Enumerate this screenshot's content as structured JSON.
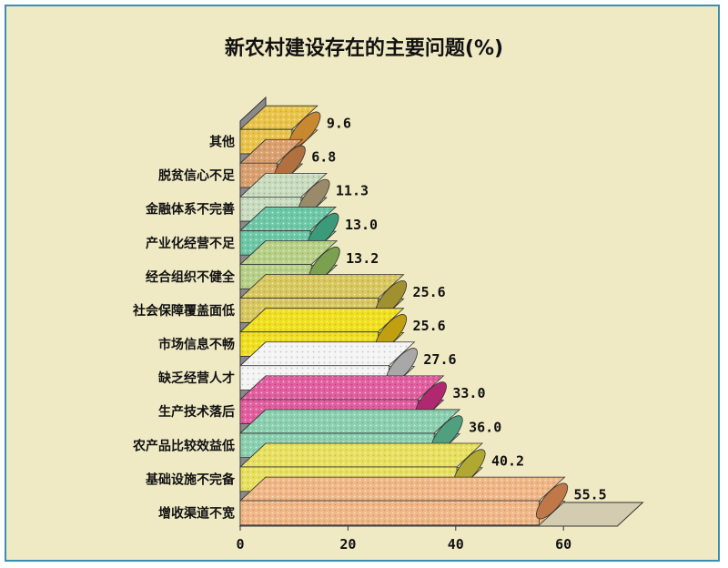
{
  "chart_data": {
    "type": "bar",
    "orientation": "horizontal",
    "title": "新农村建设存在的主要问题(%)",
    "categories": [
      "其他",
      "脱贫信心不足",
      "金融体系不完善",
      "产业化经营不足",
      "经合组织不健全",
      "社会保障覆盖面低",
      "市场信息不畅",
      "缺乏经营人才",
      "生产技术落后",
      "农产品比较效益低",
      "基础设施不完备",
      "增收渠道不宽"
    ],
    "values": [
      9.6,
      6.8,
      11.3,
      13.0,
      13.2,
      25.6,
      25.6,
      27.6,
      33.0,
      36.0,
      40.2,
      55.5
    ],
    "value_labels": [
      "9.6",
      "6.8",
      "11.3",
      "13.0",
      "13.2",
      "25.6",
      "25.6",
      "27.6",
      "33.0",
      "36.0",
      "40.2",
      "55.5"
    ],
    "x_ticks": [
      "0",
      "20",
      "40",
      "60"
    ],
    "xlim": [
      0,
      70
    ],
    "xlabel": "",
    "ylabel": "",
    "bar_colors": [
      "#e8c44a",
      "#d9a070",
      "#c8dcc0",
      "#6ec8a8",
      "#b8d088",
      "#d8c860",
      "#f0e020",
      "#f4f4f4",
      "#e060a0",
      "#8cd0b0",
      "#e8e060",
      "#f0b888"
    ],
    "bar_cap_colors": [
      "#c88830",
      "#b07040",
      "#9a8a6a",
      "#3a9a7a",
      "#7aa050",
      "#a09030",
      "#c0a010",
      "#a8a8a8",
      "#b02870",
      "#50a080",
      "#b0a830",
      "#c07848"
    ],
    "background_color": "#efe9c4",
    "border_color": "#3a8fb0"
  }
}
